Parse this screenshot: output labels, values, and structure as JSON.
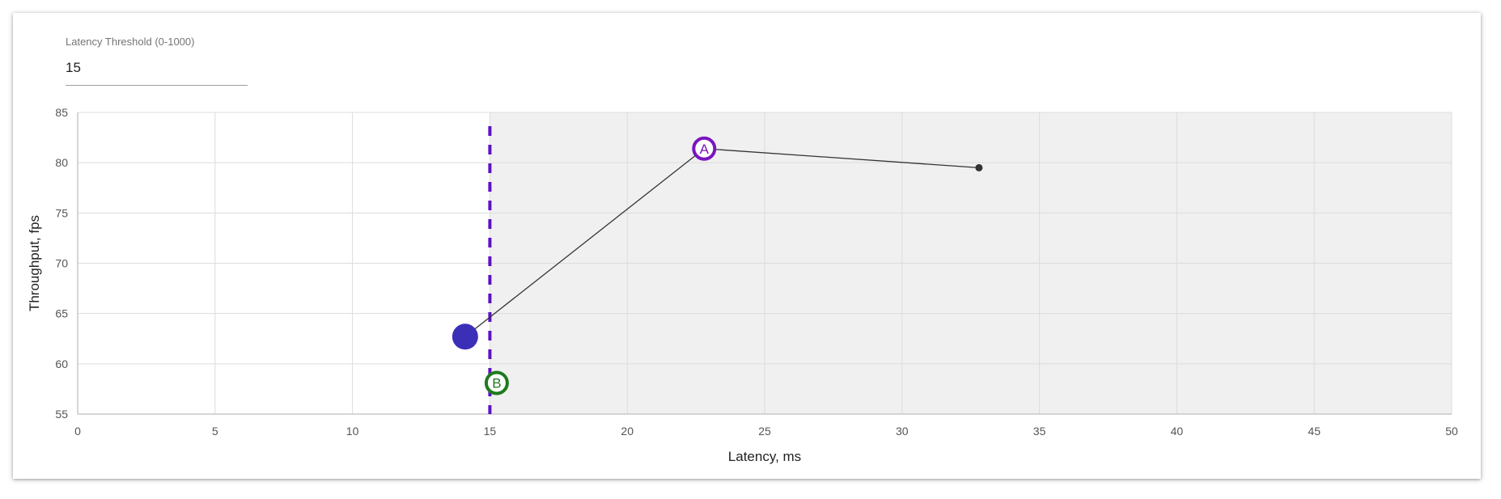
{
  "threshold_field": {
    "label": "Latency Threshold (0-1000)",
    "value": "15"
  },
  "chart_data": {
    "type": "scatter",
    "xlabel": "Latency, ms",
    "ylabel": "Throughput, fps",
    "xlim": [
      0,
      50
    ],
    "ylim": [
      55,
      85
    ],
    "x_ticks": [
      0,
      5,
      10,
      15,
      20,
      25,
      30,
      35,
      40,
      45,
      50
    ],
    "y_ticks": [
      55,
      60,
      65,
      70,
      75,
      80,
      85
    ],
    "grid": true,
    "threshold_x": 15,
    "line_points": [
      {
        "x": 14.1,
        "y": 62.7
      },
      {
        "x": 22.8,
        "y": 81.4
      },
      {
        "x": 32.8,
        "y": 79.5
      }
    ],
    "markers": [
      {
        "label": "",
        "x": 14.1,
        "y": 62.7,
        "kind": "filled",
        "color": "#3b2fb8"
      },
      {
        "label": "A",
        "x": 22.8,
        "y": 81.4,
        "kind": "ring",
        "color": "#7a14c0"
      },
      {
        "label": "",
        "x": 32.8,
        "y": 79.5,
        "kind": "dot",
        "color": "#333333"
      },
      {
        "label": "B",
        "x": 15.25,
        "y": 58.1,
        "kind": "ring",
        "color": "#1f7a1f"
      }
    ],
    "colors": {
      "threshold_line": "#5b12c2",
      "shaded_region": "#f0f0f0",
      "grid": "#dcdcdc",
      "connector": "#333333"
    }
  }
}
